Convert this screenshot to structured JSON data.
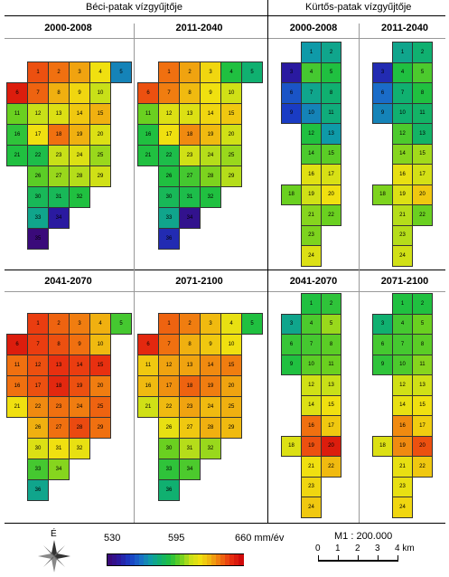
{
  "headers": {
    "left": "Béci-patak vízgyűjtője",
    "right": "Kürtős-patak vízgyűjtője"
  },
  "panels": [
    {
      "id": "beci-2000-2008",
      "catchment": "beci",
      "title": "2000-2008"
    },
    {
      "id": "beci-2011-2040",
      "catchment": "beci",
      "title": "2011-2040"
    },
    {
      "id": "kurtos-2000-2008",
      "catchment": "kurtos",
      "title": "2000-2008"
    },
    {
      "id": "kurtos-2011-2040",
      "catchment": "kurtos",
      "title": "2011-2040"
    },
    {
      "id": "beci-2041-2070",
      "catchment": "beci",
      "title": "2041-2070"
    },
    {
      "id": "beci-2071-2100",
      "catchment": "beci",
      "title": "2071-2100"
    },
    {
      "id": "kurtos-2041-2070",
      "catchment": "kurtos",
      "title": "2041-2070"
    },
    {
      "id": "kurtos-2071-2100",
      "catchment": "kurtos",
      "title": "2071-2100"
    }
  ],
  "legend": {
    "min_label": "530",
    "mid_label": "595",
    "max_label": "660 mm/év",
    "min": 530,
    "max": 660,
    "palette": [
      "#3a0a7a",
      "#2a1aa0",
      "#1a3cc4",
      "#1a6cc8",
      "#0f9aa8",
      "#10b070",
      "#20c040",
      "#6ad020",
      "#c8e018",
      "#f0e010",
      "#f0b010",
      "#f07010",
      "#e83010",
      "#d00a0a"
    ]
  },
  "compass": {
    "label": "É"
  },
  "scale": {
    "ratio": "M1 : 200.000",
    "ticks": [
      "0",
      "1",
      "2",
      "3",
      "4 km"
    ]
  },
  "chart_data": {
    "type": "heatmap",
    "unit": "mm/év",
    "catchments": [
      {
        "name": "Béci-patak vízgyűjtője",
        "cells": [
          "1",
          "2",
          "3",
          "4",
          "5",
          "6",
          "7",
          "8",
          "9",
          "10",
          "11",
          "12",
          "13",
          "14",
          "15",
          "16",
          "17",
          "18",
          "19",
          "20",
          "21",
          "22",
          "23",
          "24",
          "25",
          "26",
          "27",
          "28",
          "29",
          "30",
          "31",
          "32",
          "33",
          "34",
          "35",
          "36"
        ],
        "periods": {
          "2000-2008": [
            645,
            640,
            632,
            620,
            565,
            655,
            642,
            630,
            622,
            610,
            600,
            610,
            615,
            625,
            630,
            592,
            620,
            640,
            630,
            615,
            590,
            588,
            610,
            615,
            605,
            598,
            605,
            608,
            612,
            585,
            585,
            590,
            575,
            540,
            530,
            null
          ],
          "2011-2040": [
            640,
            632,
            622,
            590,
            580,
            645,
            638,
            628,
            620,
            612,
            600,
            615,
            615,
            622,
            625,
            590,
            620,
            636,
            628,
            612,
            590,
            588,
            612,
            608,
            605,
            590,
            595,
            602,
            608,
            585,
            588,
            590,
            575,
            535,
            null,
            545
          ],
          "2041-2070": [
            648,
            642,
            638,
            630,
            595,
            655,
            648,
            645,
            640,
            628,
            640,
            645,
            650,
            648,
            650,
            640,
            645,
            652,
            645,
            638,
            620,
            636,
            640,
            638,
            642,
            630,
            640,
            646,
            640,
            615,
            620,
            618,
            595,
            603,
            null,
            575
          ],
          "2071-2100": [
            642,
            638,
            628,
            618,
            590,
            652,
            640,
            630,
            625,
            620,
            625,
            632,
            632,
            636,
            638,
            628,
            635,
            642,
            638,
            632,
            612,
            628,
            632,
            628,
            630,
            618,
            625,
            630,
            628,
            600,
            608,
            605,
            592,
            596,
            null,
            580
          ]
        }
      },
      {
        "name": "Kürtős-patak vízgyűjtője",
        "cells": [
          "1",
          "2",
          "3",
          "4",
          "5",
          "6",
          "7",
          "8",
          "9",
          "10",
          "11",
          "12",
          "13",
          "14",
          "15",
          "16",
          "17",
          "18",
          "19",
          "20",
          "21",
          "22",
          "23",
          "24"
        ],
        "periods": {
          "2000-2008": [
            570,
            575,
            540,
            595,
            590,
            555,
            575,
            580,
            550,
            565,
            578,
            590,
            570,
            596,
            598,
            616,
            614,
            600,
            612,
            620,
            603,
            600,
            602,
            615
          ],
          "2011-2040": [
            575,
            580,
            545,
            590,
            596,
            560,
            580,
            590,
            565,
            580,
            582,
            596,
            582,
            603,
            606,
            618,
            613,
            602,
            615,
            625,
            608,
            600,
            608,
            612
          ],
          "2041-2070": [
            590,
            592,
            575,
            596,
            605,
            593,
            595,
            598,
            590,
            598,
            600,
            612,
            610,
            615,
            620,
            640,
            625,
            615,
            645,
            655,
            620,
            628,
            622,
            625
          ],
          "2071-2100": [
            590,
            590,
            580,
            595,
            600,
            595,
            595,
            598,
            592,
            596,
            603,
            612,
            612,
            618,
            620,
            636,
            624,
            615,
            636,
            645,
            618,
            625,
            618,
            622
          ]
        }
      }
    ]
  }
}
